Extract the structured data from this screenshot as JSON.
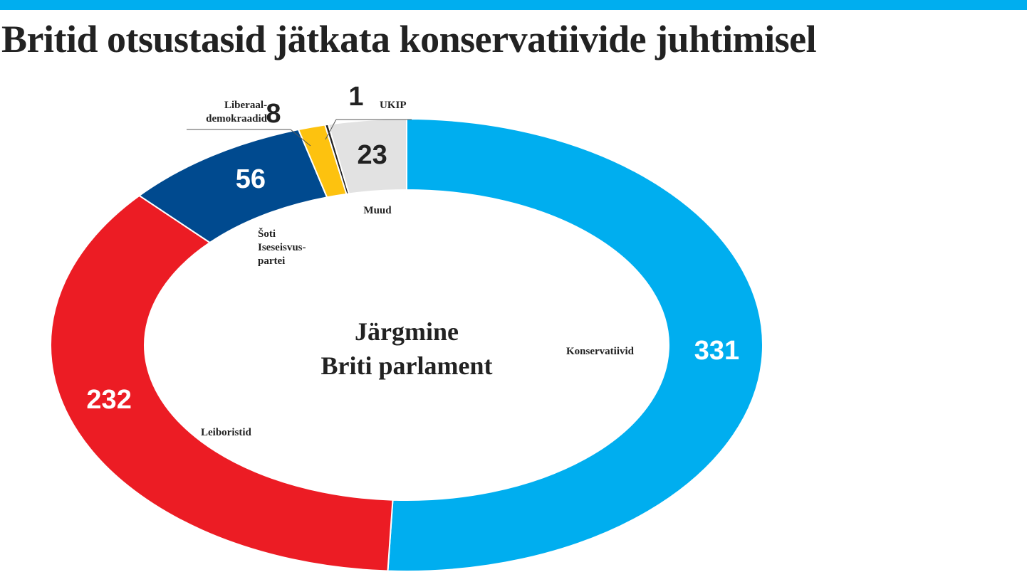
{
  "title": "Britid otsustasid jätkata konservatiivide juhtimisel",
  "colors": {
    "top_bar": "#00aeef",
    "Konservatiivid": "#00aeef",
    "Leiboristid": "#ec1c24",
    "Šoti Iseseisvuspartei": "#004a8f",
    "Liberaaldemokraadid": "#fdc20f",
    "UKIP": "#222222",
    "Muud": "#e2e2e2"
  },
  "chart_data": {
    "type": "pie",
    "variant": "donut",
    "center_label": [
      "Järgmine",
      "Briti parlament"
    ],
    "total": 651,
    "start": "top, clockwise",
    "slices": [
      {
        "name": "Konservatiivid",
        "value": 331,
        "label": [
          "Konservatiivid"
        ],
        "value_label": "331"
      },
      {
        "name": "Leiboristid",
        "value": 232,
        "label": [
          "Leiboristid"
        ],
        "value_label": "232"
      },
      {
        "name": "Šoti Iseseisvuspartei",
        "value": 56,
        "label": [
          "Šoti",
          "Iseseisvus-",
          "partei"
        ],
        "value_label": "56"
      },
      {
        "name": "Liberaaldemokraadid",
        "value": 8,
        "label": [
          "Liberaal-",
          "demokraadid"
        ],
        "value_label": "8"
      },
      {
        "name": "UKIP",
        "value": 1,
        "label": [
          "UKIP"
        ],
        "value_label": "1"
      },
      {
        "name": "Muud",
        "value": 23,
        "label": [
          "Muud"
        ],
        "value_label": "23"
      }
    ]
  }
}
